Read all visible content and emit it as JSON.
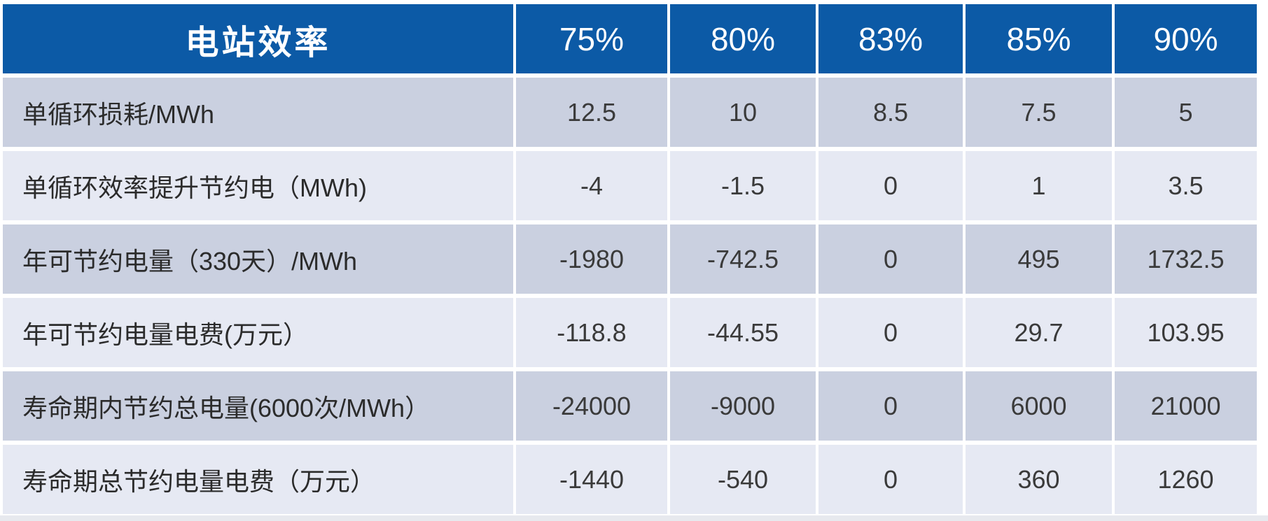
{
  "chart_data": {
    "type": "table",
    "header": {
      "label": "电站效率",
      "columns": [
        "75%",
        "80%",
        "83%",
        "85%",
        "90%"
      ]
    },
    "rows": [
      {
        "label": "单循环损耗/MWh",
        "values": [
          12.5,
          10,
          8.5,
          7.5,
          5
        ]
      },
      {
        "label": "单循环效率提升节约电（MWh)",
        "values": [
          -4,
          -1.5,
          0,
          1,
          3.5
        ]
      },
      {
        "label": "年可节约电量（330天）/MWh",
        "values": [
          -1980,
          -742.5,
          0,
          495,
          1732.5
        ]
      },
      {
        "label": "年可节约电量电费(万元）",
        "values": [
          -118.8,
          -44.55,
          0,
          29.7,
          103.95
        ]
      },
      {
        "label": "寿命期内节约总电量(6000次/MWh）",
        "values": [
          -24000,
          -9000,
          0,
          6000,
          21000
        ]
      },
      {
        "label": "寿命期总节约电量电费（万元）",
        "values": [
          -1440,
          -540,
          0,
          360,
          1260
        ]
      }
    ]
  },
  "colors": {
    "header_bg": "#0C5AA6",
    "header_text": "#FFFFFF",
    "row_dark": "#CAD0E0",
    "row_light": "#E6E9F3",
    "label_text": "#2B2B2B",
    "value_text": "#3A3A3A",
    "bottom_strip": "#E7E9EE"
  }
}
